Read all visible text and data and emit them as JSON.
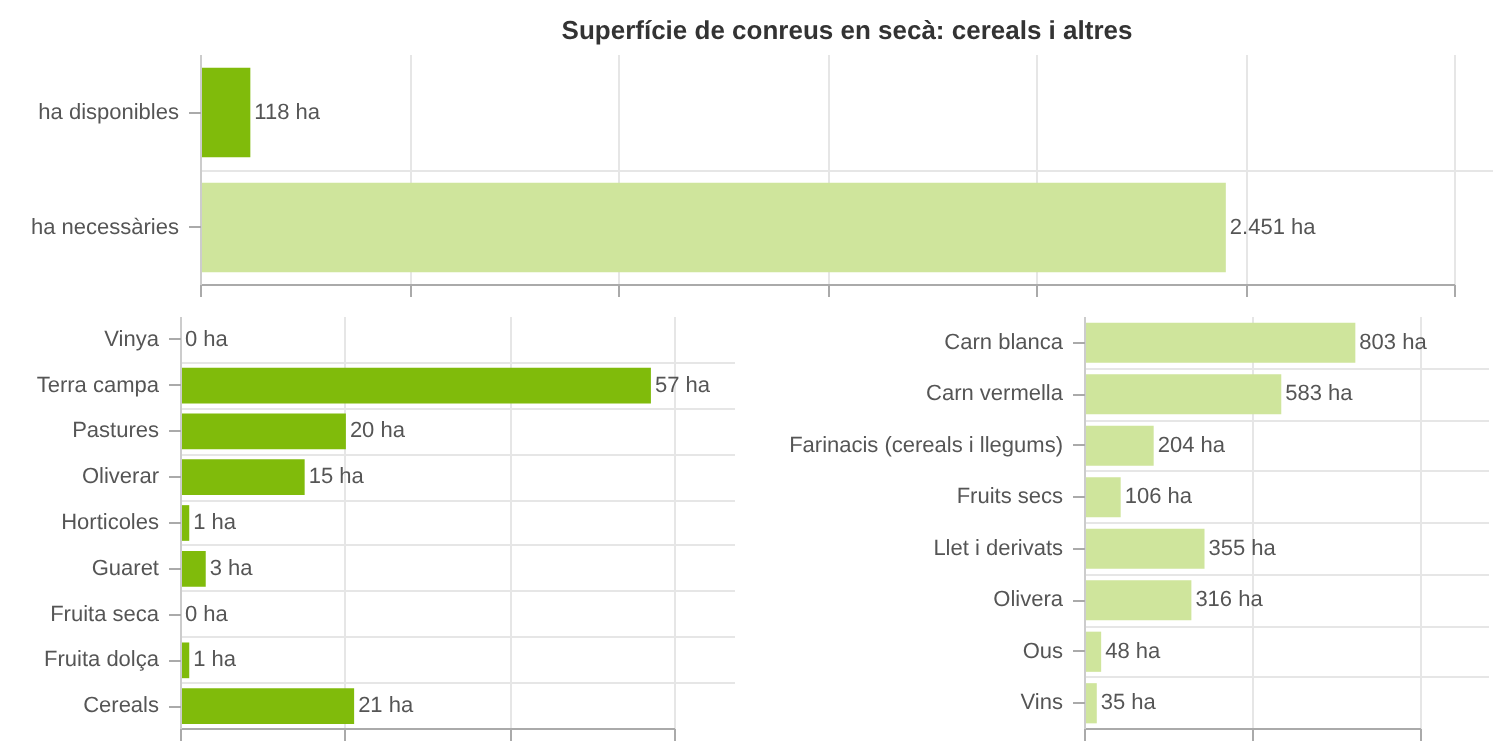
{
  "chart_data": [
    {
      "type": "bar",
      "orientation": "horizontal",
      "title": "Superfície de conreus en secà: cereals i altres",
      "categories": [
        "ha disponibles",
        "ha necessàries"
      ],
      "values": [
        118,
        2451
      ],
      "colors": [
        "#80bb0b",
        "#cfe59c"
      ],
      "value_labels": [
        "118 ha",
        "2.451 ha"
      ],
      "xlim": [
        0,
        3000
      ],
      "xticks": [
        {
          "value": 0,
          "label": null
        },
        {
          "value": 500,
          "label": null
        },
        {
          "value": 1000,
          "label": null
        },
        {
          "value": 1500,
          "label": null
        },
        {
          "value": 2000,
          "label": null
        },
        {
          "value": 2500,
          "label": null
        },
        {
          "value": 3000,
          "label": null
        }
      ],
      "grid": true,
      "tick_labels": "y"
    },
    {
      "type": "bar",
      "orientation": "horizontal",
      "categories": [
        "Vinya",
        "Terra campa",
        "Pastures",
        "Oliverar",
        "Horticoles",
        "Guaret",
        "Fruita seca",
        "Fruita dolça",
        "Cereals"
      ],
      "values": [
        0,
        57,
        20,
        15,
        1,
        3,
        0,
        1,
        21
      ],
      "color": "#80bb0b",
      "value_labels": [
        "0 ha",
        "57 ha",
        "20 ha",
        "15 ha",
        "1 ha",
        "3 ha",
        "0 ha",
        "1 ha",
        "21 ha"
      ],
      "xlim": [
        0,
        60
      ],
      "xticks": [
        {
          "value": 0,
          "label": null
        },
        {
          "value": 20,
          "label": null
        },
        {
          "value": 40,
          "label": null
        },
        {
          "value": 60,
          "label": null
        }
      ],
      "grid": true,
      "tick_labels": "y"
    },
    {
      "type": "bar",
      "orientation": "horizontal",
      "categories": [
        "Carn blanca",
        "Carn vermella",
        "Farinacis (cereals i llegums)",
        "Fruits secs",
        "Llet i derivats",
        "Olivera",
        "Ous",
        "Vins"
      ],
      "values": [
        803,
        583,
        204,
        106,
        355,
        316,
        48,
        35
      ],
      "color": "#cfe59c",
      "value_labels": [
        "803 ha",
        "583 ha",
        "204 ha",
        "106 ha",
        "355 ha",
        "316 ha",
        "48 ha",
        "35 ha"
      ],
      "xlim": [
        0,
        1000
      ],
      "xticks": [
        {
          "value": 0,
          "label": null
        },
        {
          "value": 500,
          "label": null
        },
        {
          "value": 1000,
          "label": null
        }
      ],
      "grid": true,
      "tick_labels": "y"
    }
  ]
}
